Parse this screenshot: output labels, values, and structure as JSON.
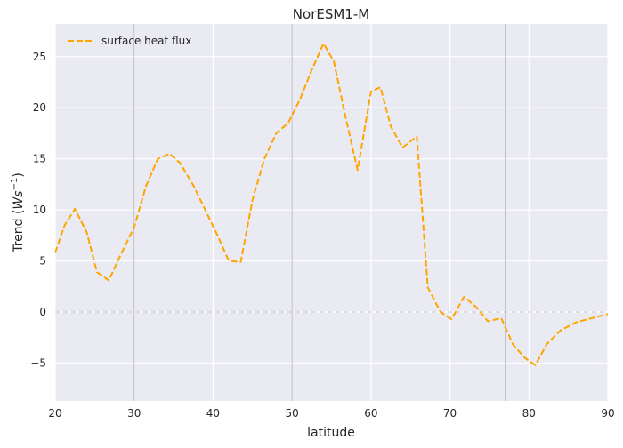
{
  "chart_data": {
    "type": "line",
    "title": "NorESM1-M",
    "xlabel": "latitude",
    "ylabel_main": "Trend (",
    "ylabel_math": "Ws",
    "ylabel_sup": "−1",
    "ylabel_end": ")",
    "xlim": [
      20,
      90
    ],
    "ylim": [
      -8.7,
      28.2
    ],
    "xticks": [
      20,
      30,
      40,
      50,
      60,
      70,
      80,
      90
    ],
    "xtick_labels": [
      "20",
      "30",
      "40",
      "50",
      "60",
      "70",
      "80",
      "90"
    ],
    "yticks": [
      -5,
      0,
      5,
      10,
      15,
      20,
      25
    ],
    "ytick_labels": [
      "−5",
      "0",
      "5",
      "10",
      "15",
      "20",
      "25"
    ],
    "grid": true,
    "vertical_markers": [
      30,
      50,
      77
    ],
    "zero_reference_line": 0,
    "legend": {
      "placement": "top-left",
      "entries": [
        "surface heat flux"
      ]
    },
    "series": [
      {
        "name": "surface heat flux",
        "color": "#FFA500",
        "style": "dashed",
        "x": [
          20,
          21.2,
          22.5,
          24,
          25.3,
          26.8,
          28.3,
          30,
          31.5,
          33,
          34.5,
          35.8,
          37.5,
          39,
          40.5,
          42,
          43.5,
          45,
          46.5,
          48,
          49.5,
          51,
          52.5,
          54,
          55.3,
          56.8,
          58.3,
          60,
          61.2,
          62.5,
          64,
          65.8,
          67.2,
          68.8,
          70.2,
          71.8,
          73.3,
          74.8,
          76.5,
          78,
          79.5,
          80.8,
          82.3,
          84,
          86,
          88,
          90
        ],
        "y": [
          5.8,
          8.5,
          10.1,
          7.8,
          3.9,
          3.1,
          5.6,
          8.3,
          12.3,
          15.0,
          15.5,
          14.6,
          12.4,
          10.0,
          7.6,
          5.0,
          4.9,
          11.0,
          15.0,
          17.5,
          18.5,
          20.8,
          23.7,
          26.3,
          24.5,
          19.0,
          13.9,
          21.6,
          22.0,
          18.2,
          16.1,
          17.2,
          2.4,
          0.0,
          -0.7,
          1.5,
          0.5,
          -0.9,
          -0.6,
          -3.2,
          -4.5,
          -5.2,
          -3.1,
          -1.8,
          -1.0,
          -0.6,
          -0.2
        ]
      }
    ]
  }
}
